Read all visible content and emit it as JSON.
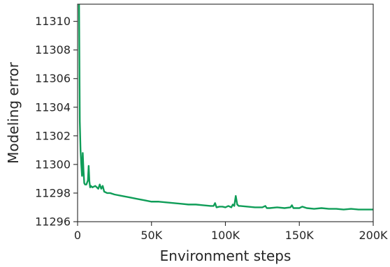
{
  "chart_data": {
    "type": "line",
    "title": "",
    "xlabel": "Environment steps",
    "ylabel": "Modeling error",
    "xlim": [
      0,
      200000
    ],
    "ylim": [
      11296,
      11311.2
    ],
    "grid": false,
    "legend": "none",
    "xticks": [
      {
        "value": 0,
        "label": "0"
      },
      {
        "value": 50000,
        "label": "50K"
      },
      {
        "value": 100000,
        "label": "100K"
      },
      {
        "value": 150000,
        "label": "150K"
      },
      {
        "value": 200000,
        "label": "200K"
      }
    ],
    "yticks": [
      {
        "value": 11296,
        "label": "11296"
      },
      {
        "value": 11298,
        "label": "11298"
      },
      {
        "value": 11300,
        "label": "11300"
      },
      {
        "value": 11302,
        "label": "11302"
      },
      {
        "value": 11304,
        "label": "11304"
      },
      {
        "value": 11306,
        "label": "11306"
      },
      {
        "value": 11308,
        "label": "11308"
      },
      {
        "value": 11310,
        "label": "11310"
      }
    ],
    "series": [
      {
        "color": "#0f9d58",
        "x": [
          1000,
          1500,
          2000,
          2500,
          3000,
          3500,
          4000,
          4500,
          5000,
          6000,
          7000,
          7500,
          8000,
          8500,
          9000,
          10000,
          12000,
          14000,
          15000,
          16000,
          17000,
          18000,
          20000,
          22000,
          25000,
          30000,
          35000,
          40000,
          45000,
          50000,
          55000,
          60000,
          65000,
          70000,
          75000,
          80000,
          85000,
          90000,
          92000,
          93000,
          94000,
          96000,
          98000,
          100000,
          102000,
          104000,
          105000,
          106000,
          107000,
          107500,
          108000,
          109000,
          110000,
          115000,
          120000,
          125000,
          127000,
          128000,
          130000,
          135000,
          140000,
          144000,
          145000,
          146000,
          148000,
          150000,
          152000,
          155000,
          160000,
          165000,
          170000,
          175000,
          180000,
          185000,
          190000,
          195000,
          200000
        ],
        "y": [
          11311.2,
          11303.0,
          11301.0,
          11300.0,
          11299.2,
          11300.8,
          11299.6,
          11298.7,
          11298.6,
          11298.6,
          11298.9,
          11299.9,
          11298.8,
          11298.4,
          11298.5,
          11298.4,
          11298.5,
          11298.3,
          11298.6,
          11298.3,
          11298.5,
          11298.1,
          11298.0,
          11298.0,
          11297.9,
          11297.8,
          11297.7,
          11297.6,
          11297.5,
          11297.4,
          11297.4,
          11297.35,
          11297.3,
          11297.25,
          11297.2,
          11297.2,
          11297.15,
          11297.1,
          11297.1,
          11297.3,
          11297.0,
          11297.05,
          11297.05,
          11297.0,
          11297.1,
          11297.0,
          11297.2,
          11297.1,
          11297.8,
          11297.5,
          11297.2,
          11297.1,
          11297.1,
          11297.05,
          11297.0,
          11297.0,
          11297.1,
          11296.95,
          11296.95,
          11297.0,
          11296.95,
          11297.0,
          11297.15,
          11296.95,
          11296.95,
          11296.95,
          11297.05,
          11296.95,
          11296.9,
          11296.95,
          11296.9,
          11296.9,
          11296.85,
          11296.9,
          11296.85,
          11296.85,
          11296.85
        ]
      }
    ]
  }
}
